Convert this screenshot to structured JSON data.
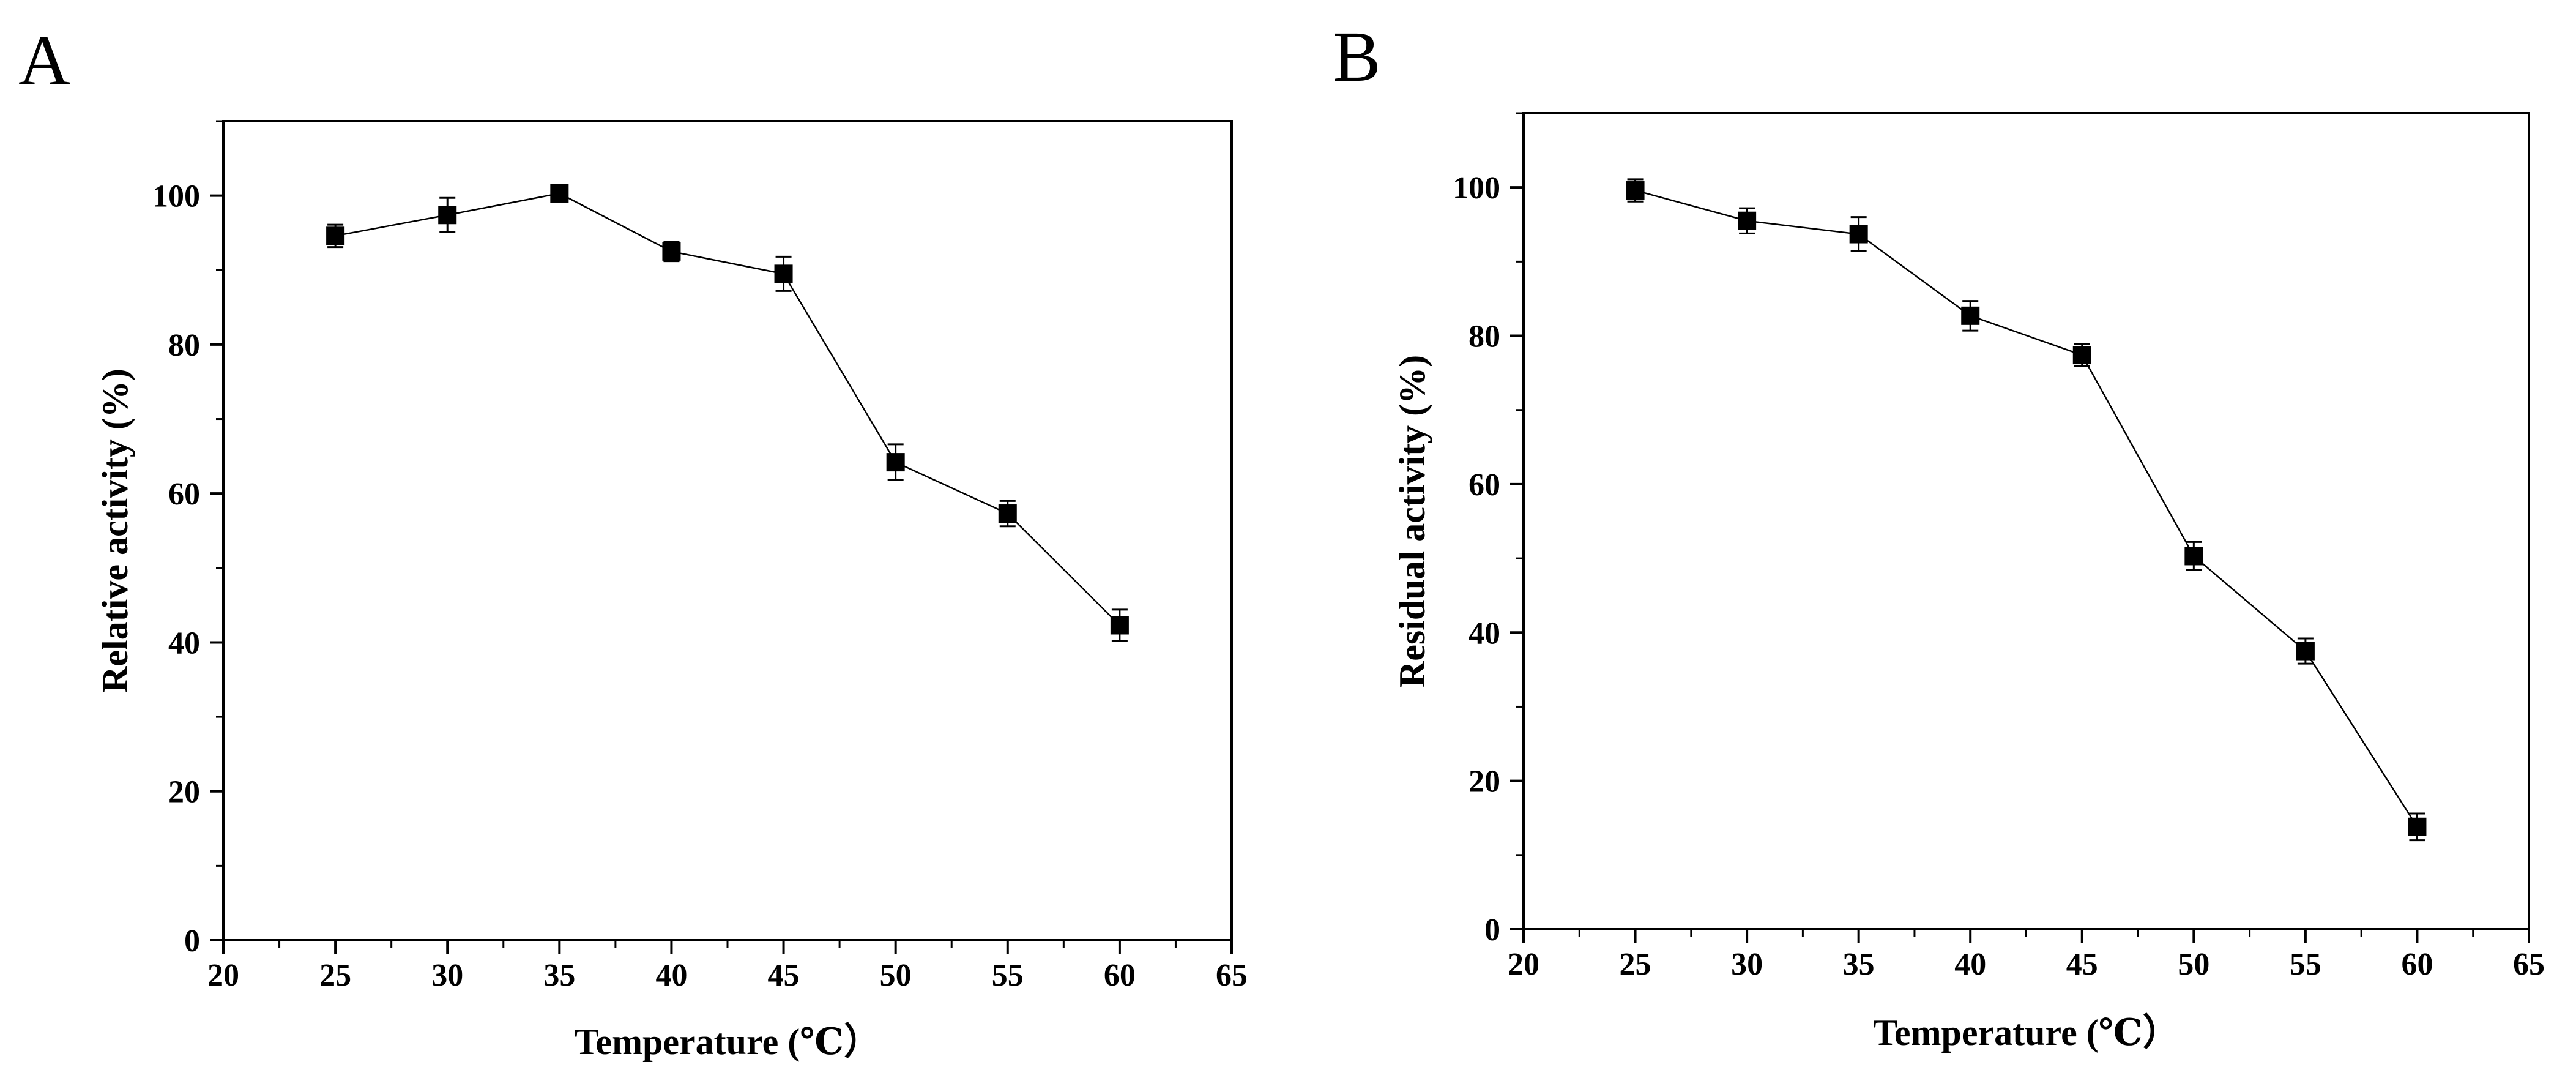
{
  "chart_data": [
    {
      "panel_label": "A",
      "type": "line",
      "title": "",
      "xlabel": "Temperature (℃）",
      "ylabel": "Relative activity (%)",
      "xlim": [
        20,
        65
      ],
      "ylim": [
        0,
        110
      ],
      "xticks": [
        20,
        25,
        30,
        35,
        40,
        45,
        50,
        55,
        60,
        65
      ],
      "yticks": [
        0,
        20,
        40,
        60,
        80,
        100
      ],
      "grid": false,
      "series": [
        {
          "name": "Relative activity",
          "marker": "square",
          "color": "#000000",
          "x": [
            25,
            30,
            35,
            40,
            45,
            50,
            55,
            60
          ],
          "values": [
            94.6,
            97.4,
            100.3,
            92.5,
            89.5,
            64.2,
            57.3,
            42.3
          ],
          "errors": [
            1.5,
            2.3,
            0.5,
            1.3,
            2.3,
            2.4,
            1.7,
            2.1
          ]
        }
      ]
    },
    {
      "panel_label": "B",
      "type": "line",
      "title": "",
      "xlabel": "Temperature (℃）",
      "ylabel": "Residual activity (%)",
      "xlim": [
        20,
        65
      ],
      "ylim": [
        0,
        110
      ],
      "xticks": [
        20,
        25,
        30,
        35,
        40,
        45,
        50,
        55,
        60,
        65
      ],
      "yticks": [
        0,
        20,
        40,
        60,
        80,
        100
      ],
      "grid": false,
      "series": [
        {
          "name": "Residual activity",
          "marker": "square",
          "color": "#000000",
          "x": [
            25,
            30,
            35,
            40,
            45,
            50,
            55,
            60
          ],
          "values": [
            99.6,
            95.5,
            93.7,
            82.7,
            77.4,
            50.3,
            37.5,
            13.8
          ],
          "errors": [
            1.5,
            1.7,
            2.3,
            2.0,
            1.5,
            1.9,
            1.7,
            1.8
          ]
        }
      ]
    }
  ]
}
